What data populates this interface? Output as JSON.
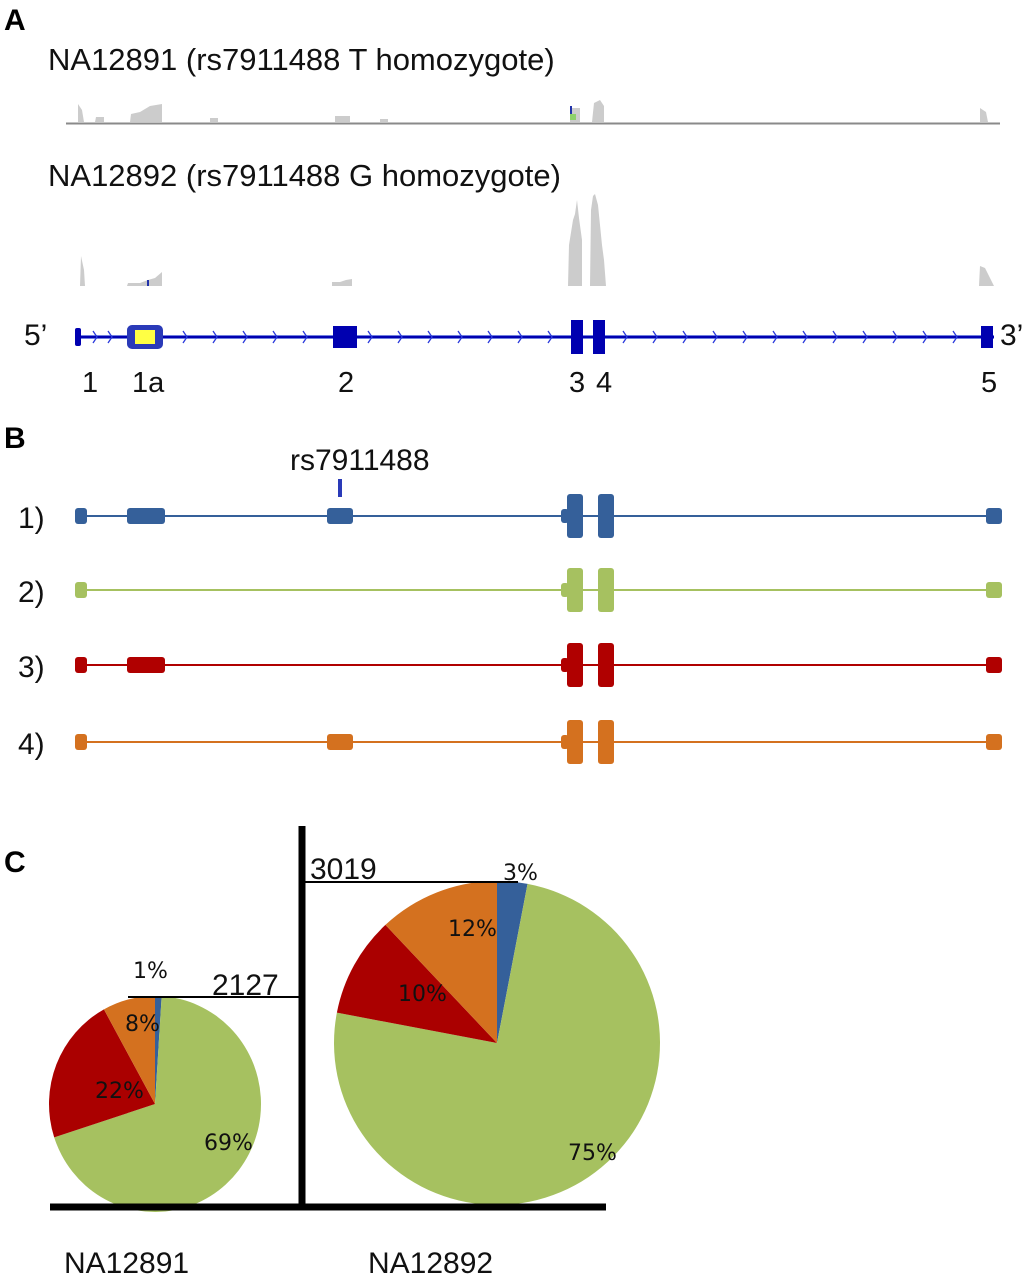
{
  "panels": {
    "a": "A",
    "b": "B",
    "c": "C"
  },
  "panel_a": {
    "track1_title": "NA12891 (rs7911488 T homozygote)",
    "track2_title": "NA12892 (rs7911488 G homozygote)",
    "five_prime": "5’",
    "three_prime": "3’",
    "exon_labels": [
      "1",
      "1a",
      "2",
      "3",
      "4",
      "5"
    ]
  },
  "panel_b": {
    "snp_label": "rs7911488",
    "transcripts": [
      {
        "label": "1)",
        "color": "#35609a",
        "exons": [
          "1",
          "1a",
          "2",
          "3",
          "4",
          "5"
        ]
      },
      {
        "label": "2)",
        "color": "#a6c160",
        "exons": [
          "1",
          "3",
          "4",
          "5"
        ]
      },
      {
        "label": "3)",
        "color": "#b00000",
        "exons": [
          "1",
          "1a",
          "3",
          "4",
          "5"
        ]
      },
      {
        "label": "4)",
        "color": "#d4711f",
        "exons": [
          "1",
          "2",
          "3",
          "4",
          "5"
        ]
      }
    ]
  },
  "chart_data": [
    {
      "type": "pie",
      "sample": "NA12891",
      "total": "2127",
      "slices": [
        {
          "transcript": "1)",
          "value": 1,
          "label": "1%",
          "color": "#35609a"
        },
        {
          "transcript": "2)",
          "value": 69,
          "label": "69%",
          "color": "#a6c160"
        },
        {
          "transcript": "3)",
          "value": 22,
          "label": "22%",
          "color": "#aa0000"
        },
        {
          "transcript": "4)",
          "value": 8,
          "label": "8%",
          "color": "#d4711f"
        }
      ]
    },
    {
      "type": "pie",
      "sample": "NA12892",
      "total": "3019",
      "slices": [
        {
          "transcript": "1)",
          "value": 3,
          "label": "3%",
          "color": "#35609a"
        },
        {
          "transcript": "2)",
          "value": 75,
          "label": "75%",
          "color": "#a6c160"
        },
        {
          "transcript": "3)",
          "value": 10,
          "label": "10%",
          "color": "#aa0000"
        },
        {
          "transcript": "4)",
          "value": 12,
          "label": "12%",
          "color": "#d4711f"
        }
      ]
    }
  ]
}
